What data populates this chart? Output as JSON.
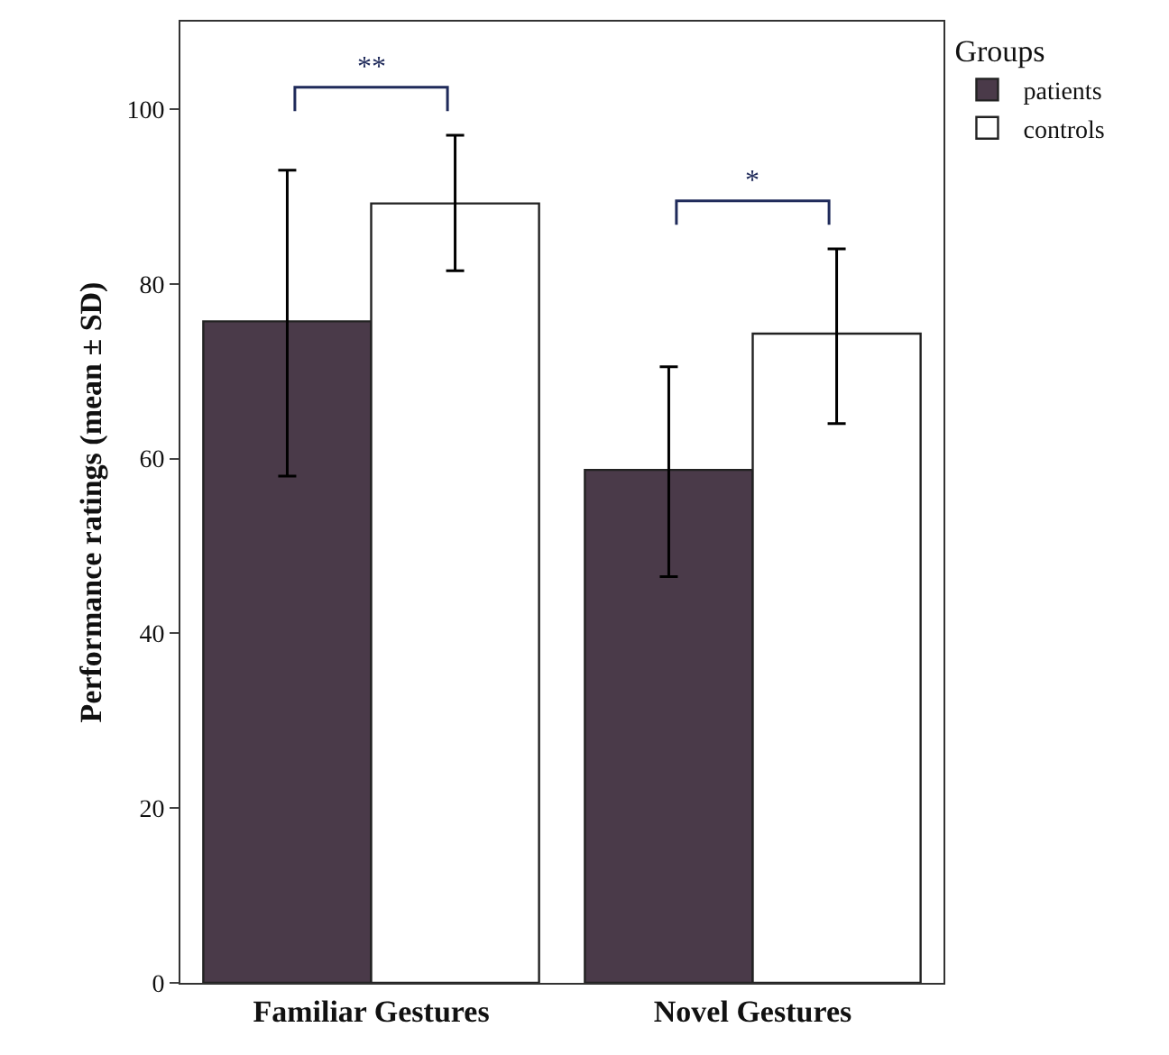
{
  "chart_data": {
    "type": "bar",
    "categories": [
      "Familiar Gestures",
      "Novel Gestures"
    ],
    "ylabel": "Performance ratings (mean ± SD)",
    "legend_title": "Groups",
    "legend": "top right",
    "series": [
      {
        "name": "patients",
        "color": "#4a3a49",
        "values": [
          75.7,
          58.7
        ],
        "errors": [
          [
            58,
            93
          ],
          [
            46.5,
            70.5
          ]
        ]
      },
      {
        "name": "controls",
        "color": "#ffffff",
        "values": [
          89.2,
          74.3
        ],
        "errors": [
          [
            81.5,
            97
          ],
          [
            64,
            84
          ]
        ]
      }
    ],
    "ylim": [
      0,
      110
    ],
    "yticks": [
      0,
      20,
      40,
      60,
      80,
      100
    ],
    "grid": false,
    "annotations": [
      "**",
      "*"
    ]
  }
}
